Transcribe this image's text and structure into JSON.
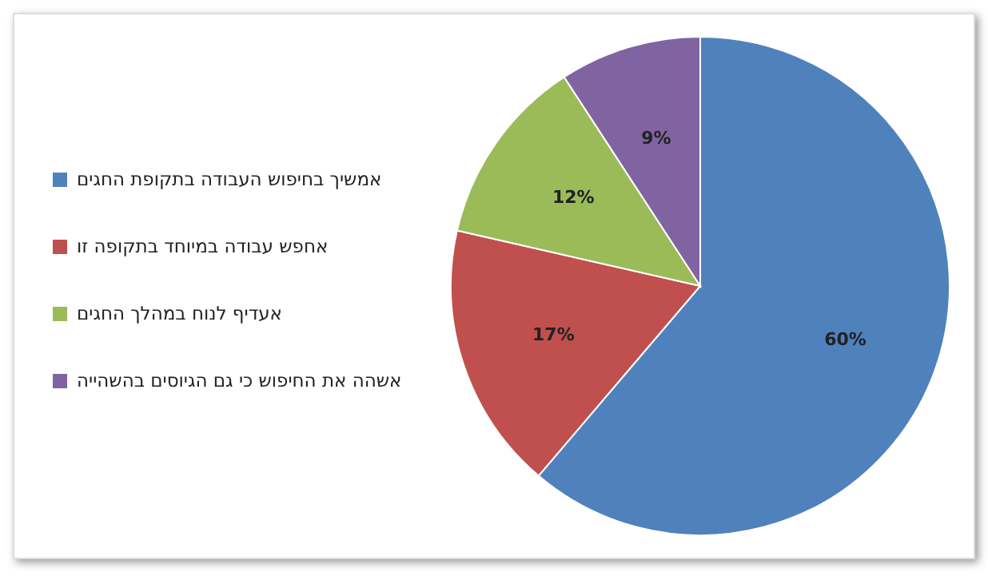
{
  "chart_data": {
    "type": "pie",
    "categories": [
      "אמשיך בחיפוש העבודה בתקופת החגים",
      "אחפש עבודה במיוחד בתקופה זו",
      "אעדיף לנוח במהלך החגים",
      "אשהה את החיפוש כי גם הגיוסים בהשהייה"
    ],
    "values": [
      60,
      17,
      12,
      9
    ],
    "colors": [
      "#4f81bd",
      "#c0504d",
      "#9bbb59",
      "#8064a2"
    ],
    "value_labels": [
      "60%",
      "17%",
      "12%",
      "9%"
    ],
    "legend": "left"
  }
}
